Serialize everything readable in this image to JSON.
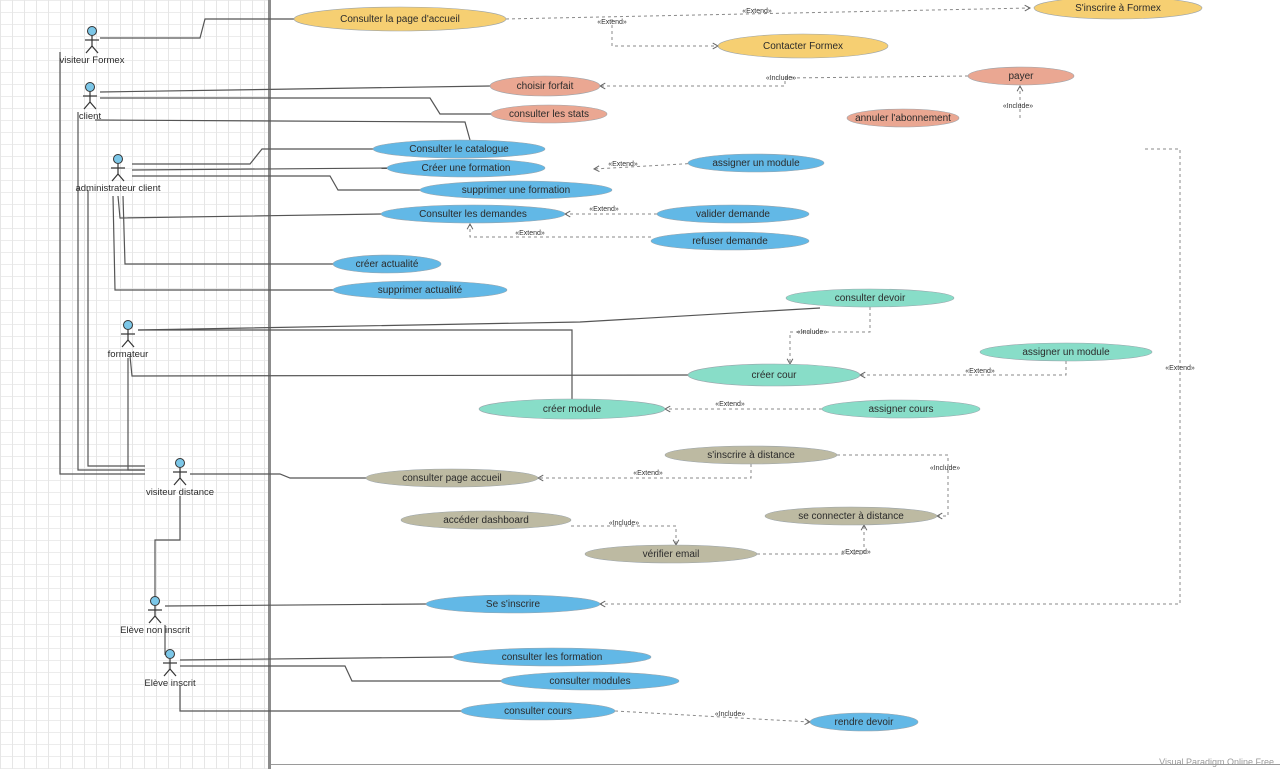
{
  "colors": {
    "yellow": "#f6cf72",
    "salmon": "#eaa792",
    "blue": "#62b8e6",
    "teal": "#88ddc8",
    "gray": "#bdbaa2",
    "actor_head": "#7cc7e8"
  },
  "actors": [
    {
      "id": "visiteur_formex",
      "label": "visiteur Formex"
    },
    {
      "id": "client",
      "label": "client"
    },
    {
      "id": "administrateur_client",
      "label": "administrateur client"
    },
    {
      "id": "formateur",
      "label": "formateur"
    },
    {
      "id": "visiteur_distance",
      "label": "visiteur distance"
    },
    {
      "id": "eleve_non_inscrit",
      "label": "Elève non inscrit"
    },
    {
      "id": "eleve_inscrit",
      "label": "Elève inscrit"
    }
  ],
  "use_cases": [
    {
      "id": "consulter_accueil",
      "label": "Consulter la page d'accueil",
      "color": "yellow"
    },
    {
      "id": "sinscrire_formex",
      "label": "S'inscrire à Formex",
      "color": "yellow"
    },
    {
      "id": "contacter_formex",
      "label": "Contacter Formex",
      "color": "yellow"
    },
    {
      "id": "choisir_forfait",
      "label": "choisir forfait",
      "color": "salmon"
    },
    {
      "id": "payer",
      "label": "payer",
      "color": "salmon"
    },
    {
      "id": "consulter_stats",
      "label": "consulter les stats",
      "color": "salmon"
    },
    {
      "id": "annuler_abonnement",
      "label": "annuler l'abonnement",
      "color": "salmon"
    },
    {
      "id": "consulter_catalogue",
      "label": "Consulter le catalogue",
      "color": "blue"
    },
    {
      "id": "creer_formation",
      "label": "Créer une formation",
      "color": "blue"
    },
    {
      "id": "assigner_module",
      "label": "assigner un module",
      "color": "blue"
    },
    {
      "id": "supprimer_formation",
      "label": "supprimer une formation",
      "color": "blue"
    },
    {
      "id": "consulter_demandes",
      "label": "Consulter les demandes",
      "color": "blue"
    },
    {
      "id": "valider_demande",
      "label": "valider demande",
      "color": "blue"
    },
    {
      "id": "refuser_demande",
      "label": "refuser demande",
      "color": "blue"
    },
    {
      "id": "creer_actualite",
      "label": "créer actualité",
      "color": "blue"
    },
    {
      "id": "supprimer_actualite",
      "label": "supprimer actualité",
      "color": "blue"
    },
    {
      "id": "consulter_devoir",
      "label": "consulter devoir",
      "color": "teal"
    },
    {
      "id": "assigner_un_module",
      "label": "assigner un module",
      "color": "teal"
    },
    {
      "id": "creer_cour",
      "label": "créer cour",
      "color": "teal"
    },
    {
      "id": "creer_module",
      "label": "créer module",
      "color": "teal"
    },
    {
      "id": "assigner_cours",
      "label": "assigner cours",
      "color": "teal"
    },
    {
      "id": "sinscrire_distance",
      "label": "s'inscrire à distance",
      "color": "gray"
    },
    {
      "id": "consulter_page_accueil",
      "label": "consulter page accueil",
      "color": "gray"
    },
    {
      "id": "se_connecter_distance",
      "label": "se connecter à distance",
      "color": "gray"
    },
    {
      "id": "acceder_dashboard",
      "label": "accéder dashboard",
      "color": "gray"
    },
    {
      "id": "verifier_email",
      "label": "vérifier email",
      "color": "gray"
    },
    {
      "id": "sinscrire",
      "label": "Se s'inscrire",
      "color": "blue"
    },
    {
      "id": "consulter_formation",
      "label": "consulter les formation",
      "color": "blue"
    },
    {
      "id": "consulter_modules",
      "label": "consulter modules",
      "color": "blue"
    },
    {
      "id": "consulter_cours",
      "label": "consulter cours",
      "color": "blue"
    },
    {
      "id": "rendre_devoir",
      "label": "rendre devoir",
      "color": "blue"
    }
  ],
  "stereotypes": {
    "extend": "«Extend»",
    "include": "«Include»"
  },
  "watermark": "Visual Paradigm Online Free"
}
